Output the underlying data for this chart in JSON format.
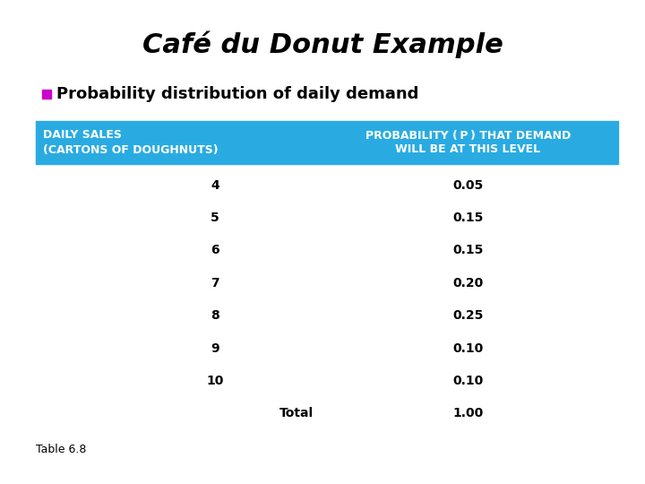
{
  "title": "Café du Donut Example",
  "subtitle": "Probability distribution of daily demand",
  "subtitle_bullet_color": "#CC00CC",
  "header_bg_color": "#29ABE2",
  "header_text_color": "#FFFFFF",
  "header_col1_line1": "DAILY SALES",
  "header_col1_line2": "(CARTONS OF DOUGHNUTS)",
  "header_col2_line1": "PROBABILITY ( P ) THAT DEMAND",
  "header_col2_line2": "WILL BE AT THIS LEVEL",
  "rows": [
    [
      "4",
      "0.05"
    ],
    [
      "5",
      "0.15"
    ],
    [
      "6",
      "0.15"
    ],
    [
      "7",
      "0.20"
    ],
    [
      "8",
      "0.25"
    ],
    [
      "9",
      "0.10"
    ],
    [
      "10",
      "0.10"
    ]
  ],
  "total_label": "Total",
  "total_value": "1.00",
  "footnote": "Table 6.8",
  "bg_color": "#FFFFFF",
  "text_color": "#000000",
  "title_fontsize": 22,
  "subtitle_fontsize": 13,
  "table_fontsize": 10,
  "header_fontsize": 9
}
